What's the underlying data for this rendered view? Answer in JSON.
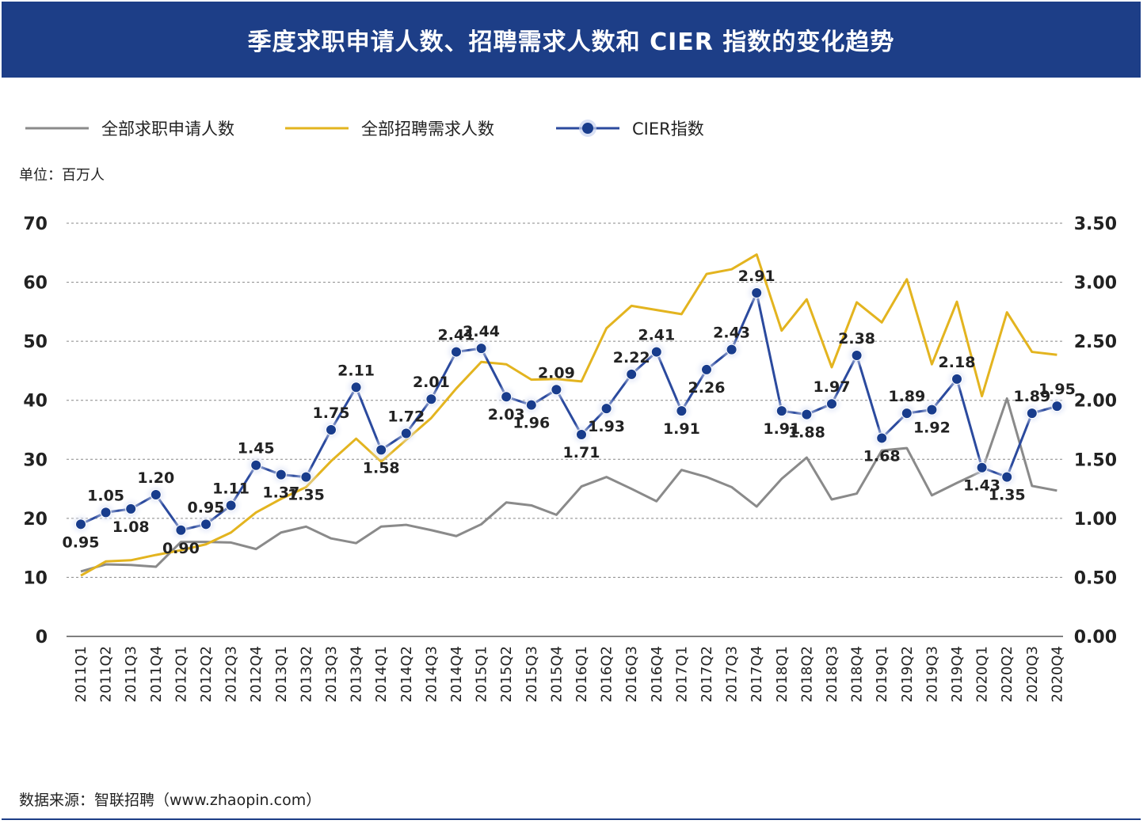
{
  "header": {
    "title": "季度求职申请人数、招聘需求人数和 CIER 指数的变化趋势"
  },
  "unit_label": "单位：百万人",
  "source_label": "数据来源：智联招聘（www.zhaopin.com）",
  "colors": {
    "header_bg": "#1d3e87",
    "applicants": "#8a8a8a",
    "demand": "#e3b41f",
    "cier": "#2b4a9e",
    "cier_marker": "#183c8c"
  },
  "chart_data": {
    "type": "line",
    "title": "季度求职申请人数、招聘需求人数和 CIER 指数的变化趋势",
    "xlabel": "",
    "ylabel": "单位：百万人",
    "ylim": [
      0,
      70
    ],
    "y2lim": [
      0,
      3.5
    ],
    "yticks": [
      0,
      10,
      20,
      30,
      40,
      50,
      60,
      70
    ],
    "y2ticks": [
      "0.00",
      "0.50",
      "1.00",
      "1.50",
      "2.00",
      "2.50",
      "3.00",
      "3.50"
    ],
    "grid": "horizontal dashed",
    "legend_position": "top-left",
    "categories": [
      "2011Q1",
      "2011Q2",
      "2011Q3",
      "2011Q4",
      "2012Q1",
      "2012Q2",
      "2012Q3",
      "2012Q4",
      "2013Q1",
      "2013Q2",
      "2013Q3",
      "2013Q4",
      "2014Q1",
      "2014Q2",
      "2014Q3",
      "2014Q4",
      "2015Q1",
      "2015Q2",
      "2015Q3",
      "2015Q4",
      "2016Q1",
      "2016Q2",
      "2016Q3",
      "2016Q4",
      "2017Q1",
      "2017Q2",
      "2017Q3",
      "2017Q4",
      "2018Q1",
      "2018Q2",
      "2018Q3",
      "2018Q4",
      "2019Q1",
      "2019Q2",
      "2019Q3",
      "2019Q4",
      "2020Q1",
      "2020Q2",
      "2020Q3",
      "2020Q4"
    ],
    "series": [
      {
        "name": "全部求职申请人数",
        "axis": "left",
        "values": [
          11.0,
          12.2,
          12.1,
          11.8,
          16.0,
          16.0,
          15.9,
          14.8,
          17.6,
          18.6,
          16.6,
          15.8,
          18.6,
          18.9,
          18.0,
          17.0,
          19.0,
          22.7,
          22.2,
          20.6,
          25.4,
          27.0,
          25.0,
          22.9,
          28.2,
          27.0,
          25.3,
          22.0,
          26.7,
          30.3,
          23.2,
          24.2,
          31.5,
          31.9,
          23.9,
          26.0,
          28.0,
          40.3,
          25.5,
          24.7
        ]
      },
      {
        "name": "全部招聘需求人数",
        "axis": "left",
        "values": [
          10.3,
          12.7,
          12.9,
          13.8,
          14.6,
          15.6,
          17.6,
          21.0,
          23.3,
          25.3,
          29.7,
          33.5,
          29.6,
          33.3,
          37.0,
          42.0,
          46.5,
          46.1,
          43.5,
          43.6,
          43.2,
          52.2,
          56.0,
          55.3,
          54.6,
          61.4,
          62.2,
          64.7,
          51.8,
          57.1,
          45.6,
          56.6,
          53.2,
          60.5,
          46.1,
          56.7,
          40.7,
          54.9,
          48.2,
          47.7
        ]
      },
      {
        "name": "CIER指数",
        "axis": "right",
        "values": [
          0.95,
          1.05,
          1.08,
          1.2,
          0.9,
          0.95,
          1.11,
          1.45,
          1.37,
          1.35,
          1.75,
          2.11,
          1.58,
          1.72,
          2.01,
          2.41,
          2.44,
          2.03,
          1.96,
          2.09,
          1.71,
          1.93,
          2.22,
          2.41,
          1.91,
          2.26,
          2.43,
          2.91,
          1.91,
          1.88,
          1.97,
          2.38,
          1.68,
          1.89,
          1.92,
          2.18,
          1.43,
          1.35,
          1.89,
          1.95
        ],
        "labels": [
          "0.95",
          "1.05",
          "1.08",
          "1.20",
          "0.90",
          "0.95",
          "1.11",
          "1.45",
          "1.37",
          "1.35",
          "1.75",
          "2.11",
          "1.58",
          "1.72",
          "2.01",
          "2.41",
          "2.44",
          "2.03",
          "1.96",
          "2.09",
          "1.71",
          "1.93",
          "2.22",
          "2.41",
          "1.91",
          "2.26",
          "2.43",
          "2.91",
          "1.91",
          "1.88",
          "1.97",
          "2.38",
          "1.68",
          "1.89",
          "1.92",
          "2.18",
          "1.43",
          "1.35",
          "1.89",
          "1.95"
        ]
      }
    ]
  }
}
